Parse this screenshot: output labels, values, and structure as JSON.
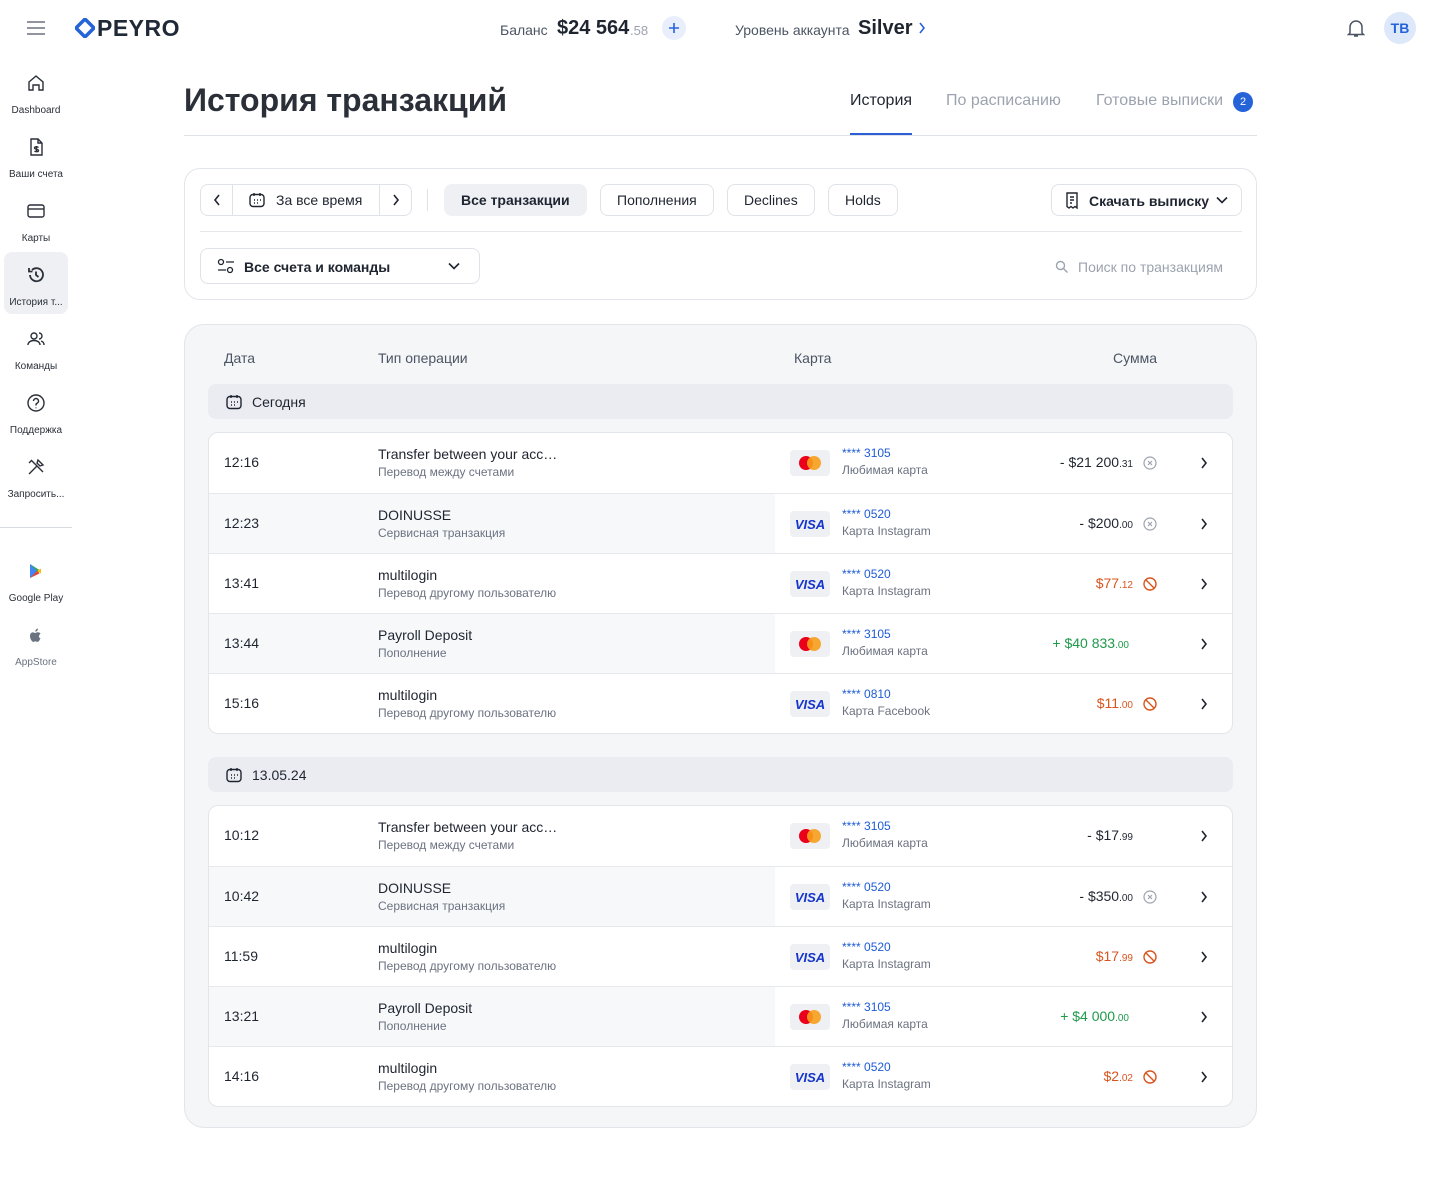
{
  "header": {
    "logo": "PEYRO",
    "balance_label": "Баланс",
    "balance": "$24 564",
    "balance_cents": ".58",
    "level_label": "Уровень аккаунта",
    "level": "Silver",
    "avatar": "TB"
  },
  "sidebar": {
    "active": 3,
    "items": [
      {
        "label": "Dashboard"
      },
      {
        "label": "Ваши счета"
      },
      {
        "label": "Карты"
      },
      {
        "label": "История т..."
      },
      {
        "label": "Команды"
      },
      {
        "label": "Поддержка"
      },
      {
        "label": "Запросить..."
      }
    ],
    "stores": [
      {
        "label": "Google Play"
      },
      {
        "label": "AppStore"
      }
    ]
  },
  "page": {
    "title": "История транзакций",
    "tabs": [
      {
        "label": "История",
        "active": true
      },
      {
        "label": "По расписанию"
      },
      {
        "label": "Готовые выписки",
        "badge": 2
      }
    ]
  },
  "filters": {
    "period": "За все время",
    "types": [
      "Все транзакции",
      "Пополнения",
      "Declines",
      "Holds"
    ],
    "active_type": 0,
    "download": "Скачать выписку",
    "accounts": "Все счета и команды",
    "search_placeholder": "Поиск по транзакциям"
  },
  "table": {
    "columns": [
      "Дата",
      "Тип операции",
      "Карта",
      "Сумма"
    ],
    "card_logo_text": "VISA",
    "groups": [
      {
        "label": "Сегодня",
        "rows": [
          {
            "time": "12:16",
            "title": "Transfer between your acc…",
            "subtitle": "Перевод между счетами",
            "card": "mastercard",
            "card_number": "**** 3105",
            "card_name": "Любимая карта",
            "amount": "- $21 200",
            "cents": ".31",
            "status": "hold"
          },
          {
            "time": "12:23",
            "title": "DOINUSSE",
            "subtitle": "Сервисная транзакция",
            "card": "visa",
            "card_number": "**** 0520",
            "card_name": "Карта Instagram",
            "amount": "- $200",
            "cents": ".00",
            "status": "hold"
          },
          {
            "time": "13:41",
            "title": "multilogin",
            "subtitle": "Перевод другому пользователю",
            "card": "visa",
            "card_number": "**** 0520",
            "card_name": "Карта Instagram",
            "amount": "$77",
            "cents": ".12",
            "status": "declined"
          },
          {
            "time": "13:44",
            "title": "Payroll Deposit",
            "subtitle": "Пополнение",
            "card": "mastercard",
            "card_number": "**** 3105",
            "card_name": "Любимая карта",
            "amount": "+ $40 833",
            "cents": ".00",
            "status": "deposit"
          },
          {
            "time": "15:16",
            "title": "multilogin",
            "subtitle": "Перевод другому пользователю",
            "card": "visa",
            "card_number": "**** 0810",
            "card_name": "Карта Facebook",
            "amount": "$11",
            "cents": ".00",
            "status": "declined"
          }
        ]
      },
      {
        "label": "13.05.24",
        "rows": [
          {
            "time": "10:12",
            "title": "Transfer between your acc…",
            "subtitle": "Перевод между счетами",
            "card": "mastercard",
            "card_number": "**** 3105",
            "card_name": "Любимая карта",
            "amount": "- $17",
            "cents": ".99",
            "status": "settled"
          },
          {
            "time": "10:42",
            "title": "DOINUSSE",
            "subtitle": "Сервисная транзакция",
            "card": "visa",
            "card_number": "**** 0520",
            "card_name": "Карта Instagram",
            "amount": "- $350",
            "cents": ".00",
            "status": "hold"
          },
          {
            "time": "11:59",
            "title": "multilogin",
            "subtitle": "Перевод другому пользователю",
            "card": "visa",
            "card_number": "**** 0520",
            "card_name": "Карта Instagram",
            "amount": "$17",
            "cents": ".99",
            "status": "declined"
          },
          {
            "time": "13:21",
            "title": "Payroll Deposit",
            "subtitle": "Пополнение",
            "card": "mastercard",
            "card_number": "**** 3105",
            "card_name": "Любимая карта",
            "amount": "+ $4 000",
            "cents": ".00",
            "status": "deposit"
          },
          {
            "time": "14:16",
            "title": "multilogin",
            "subtitle": "Перевод другому пользователю",
            "card": "visa",
            "card_number": "**** 0520",
            "card_name": "Карта Instagram",
            "amount": "$2",
            "cents": ".02",
            "status": "declined"
          }
        ]
      }
    ]
  }
}
